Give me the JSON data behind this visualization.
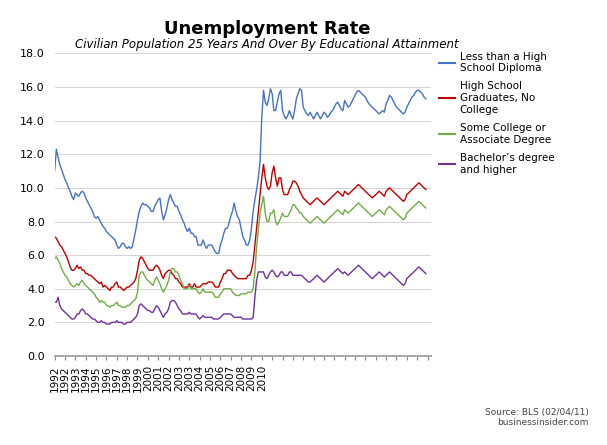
{
  "title": "Unemployment Rate",
  "subtitle": "Civilian Population 25 Years And Over By Educational Attainment",
  "source": "Source: BLS (02/04/11)\nbusinessinsider.com",
  "ylim": [
    0.0,
    18.0
  ],
  "yticks": [
    0.0,
    2.0,
    4.0,
    6.0,
    8.0,
    10.0,
    12.0,
    14.0,
    16.0,
    18.0
  ],
  "colors": {
    "less_hs": "#4472C4",
    "hs_grad": "#C00000",
    "some_college": "#70AD47",
    "bachelors": "#7030A0"
  },
  "legend": [
    "Less than a High\nSchool Diploma",
    "High School\nGraduates, No\nCollege",
    "Some College or\nAssociate Degree",
    "Bachelor’s degree\nand higher"
  ],
  "less_hs": [
    11.0,
    12.3,
    11.8,
    11.4,
    11.1,
    10.8,
    10.5,
    10.3,
    10.0,
    9.8,
    9.5,
    9.3,
    9.7,
    9.6,
    9.5,
    9.7,
    9.8,
    9.7,
    9.4,
    9.2,
    9.0,
    8.8,
    8.6,
    8.3,
    8.2,
    8.3,
    8.1,
    7.9,
    7.7,
    7.6,
    7.4,
    7.3,
    7.2,
    7.1,
    7.0,
    6.9,
    6.6,
    6.4,
    6.5,
    6.7,
    6.7,
    6.5,
    6.4,
    6.5,
    6.4,
    6.5,
    7.0,
    7.5,
    8.1,
    8.6,
    8.9,
    9.1,
    9.0,
    9.0,
    8.9,
    8.8,
    8.6,
    8.6,
    8.9,
    9.1,
    9.3,
    9.4,
    8.6,
    8.1,
    8.4,
    8.8,
    9.3,
    9.6,
    9.3,
    9.1,
    8.9,
    8.9,
    8.6,
    8.4,
    8.1,
    7.9,
    7.6,
    7.4,
    7.6,
    7.3,
    7.3,
    7.1,
    7.1,
    6.6,
    6.6,
    6.6,
    6.9,
    6.6,
    6.4,
    6.6,
    6.6,
    6.6,
    6.4,
    6.2,
    6.1,
    6.1,
    6.6,
    6.9,
    7.3,
    7.6,
    7.6,
    7.9,
    8.3,
    8.6,
    9.1,
    8.6,
    8.3,
    8.1,
    7.6,
    7.1,
    6.9,
    6.6,
    6.6,
    6.9,
    7.6,
    8.6,
    9.3,
    9.9,
    10.6,
    11.6,
    14.2,
    15.8,
    15.1,
    14.9,
    15.3,
    15.9,
    15.6,
    14.6,
    14.6,
    15.1,
    15.6,
    15.8,
    14.6,
    14.3,
    14.1,
    14.3,
    14.6,
    14.3,
    14.1,
    14.6,
    15.3,
    15.6,
    15.9,
    15.8,
    14.8,
    14.6,
    14.4,
    14.3,
    14.5,
    14.3,
    14.1,
    14.3,
    14.5,
    14.3,
    14.1,
    14.3,
    14.5,
    14.4,
    14.2,
    14.3,
    14.5,
    14.6,
    14.8,
    15.0,
    15.1,
    14.9,
    14.7,
    14.6,
    15.2,
    15.0,
    14.8,
    14.9,
    15.1,
    15.3,
    15.5,
    15.7,
    15.8,
    15.7,
    15.6,
    15.5,
    15.4,
    15.2,
    15.0,
    14.9,
    14.8,
    14.7,
    14.6,
    14.5,
    14.4,
    14.5,
    14.6,
    14.5,
    15.0,
    15.2,
    15.5,
    15.4,
    15.2,
    15.0,
    14.8,
    14.7,
    14.6,
    14.5,
    14.4,
    14.5,
    14.8,
    15.0,
    15.2,
    15.4,
    15.5,
    15.7,
    15.8,
    15.8,
    15.7,
    15.6,
    15.4,
    15.3
  ],
  "hs_grad": [
    7.1,
    7.0,
    6.8,
    6.6,
    6.5,
    6.3,
    6.1,
    5.9,
    5.6,
    5.3,
    5.1,
    5.1,
    5.2,
    5.4,
    5.2,
    5.3,
    5.1,
    5.1,
    4.9,
    4.9,
    4.8,
    4.8,
    4.7,
    4.6,
    4.5,
    4.4,
    4.3,
    4.4,
    4.1,
    4.2,
    4.1,
    4.0,
    3.9,
    4.1,
    4.1,
    4.3,
    4.4,
    4.1,
    4.1,
    4.0,
    3.9,
    4.0,
    4.1,
    4.1,
    4.2,
    4.3,
    4.4,
    4.6,
    5.1,
    5.7,
    5.9,
    5.8,
    5.6,
    5.4,
    5.2,
    5.1,
    5.1,
    5.1,
    5.3,
    5.4,
    5.3,
    5.1,
    4.8,
    4.6,
    4.9,
    5.0,
    5.1,
    5.1,
    4.9,
    4.8,
    4.6,
    4.6,
    4.4,
    4.3,
    4.1,
    4.1,
    4.1,
    4.1,
    4.3,
    4.1,
    4.1,
    4.3,
    4.1,
    4.1,
    4.1,
    4.2,
    4.3,
    4.3,
    4.3,
    4.4,
    4.4,
    4.4,
    4.3,
    4.1,
    4.1,
    4.1,
    4.4,
    4.6,
    4.9,
    4.9,
    5.1,
    5.1,
    5.1,
    4.9,
    4.8,
    4.7,
    4.6,
    4.6,
    4.6,
    4.6,
    4.6,
    4.6,
    4.8,
    4.8,
    5.1,
    5.6,
    6.6,
    7.6,
    8.6,
    9.6,
    10.6,
    11.4,
    10.6,
    10.1,
    9.9,
    10.1,
    10.9,
    11.3,
    10.6,
    10.1,
    10.6,
    10.6,
    9.9,
    9.6,
    9.6,
    9.6,
    9.9,
    10.1,
    10.4,
    10.4,
    10.3,
    10.1,
    9.8,
    9.6,
    9.4,
    9.3,
    9.2,
    9.1,
    9.0,
    9.1,
    9.2,
    9.3,
    9.4,
    9.3,
    9.2,
    9.1,
    9.0,
    9.1,
    9.2,
    9.3,
    9.4,
    9.5,
    9.6,
    9.7,
    9.8,
    9.7,
    9.6,
    9.5,
    9.8,
    9.7,
    9.6,
    9.7,
    9.8,
    9.9,
    10.0,
    10.1,
    10.2,
    10.1,
    10.0,
    9.9,
    9.8,
    9.7,
    9.6,
    9.5,
    9.4,
    9.5,
    9.6,
    9.7,
    9.8,
    9.7,
    9.6,
    9.5,
    9.8,
    9.9,
    10.0,
    9.9,
    9.8,
    9.7,
    9.6,
    9.5,
    9.4,
    9.3,
    9.2,
    9.3,
    9.6,
    9.7,
    9.8,
    9.9,
    10.0,
    10.1,
    10.2,
    10.3,
    10.2,
    10.1,
    10.0,
    9.9
  ],
  "some_college": [
    5.8,
    5.9,
    5.7,
    5.5,
    5.2,
    5.0,
    4.8,
    4.7,
    4.5,
    4.3,
    4.2,
    4.1,
    4.2,
    4.3,
    4.2,
    4.4,
    4.5,
    4.3,
    4.2,
    4.1,
    4.0,
    3.9,
    3.8,
    3.7,
    3.5,
    3.4,
    3.2,
    3.3,
    3.2,
    3.2,
    3.0,
    3.0,
    2.9,
    3.0,
    3.0,
    3.1,
    3.2,
    3.0,
    3.0,
    2.9,
    2.9,
    2.9,
    3.0,
    3.0,
    3.1,
    3.2,
    3.3,
    3.4,
    3.8,
    4.8,
    5.0,
    5.0,
    4.8,
    4.6,
    4.5,
    4.4,
    4.3,
    4.2,
    4.5,
    4.7,
    4.5,
    4.3,
    4.0,
    3.8,
    4.0,
    4.2,
    4.5,
    5.0,
    5.2,
    5.2,
    5.0,
    5.0,
    4.8,
    4.5,
    4.3,
    4.0,
    4.0,
    4.0,
    4.2,
    4.0,
    4.0,
    4.0,
    4.0,
    3.8,
    3.7,
    3.8,
    4.0,
    3.8,
    3.8,
    3.8,
    3.8,
    3.8,
    3.7,
    3.5,
    3.5,
    3.5,
    3.7,
    3.8,
    4.0,
    4.0,
    4.0,
    4.0,
    4.0,
    3.8,
    3.7,
    3.6,
    3.6,
    3.6,
    3.7,
    3.7,
    3.7,
    3.7,
    3.8,
    3.8,
    3.8,
    4.0,
    5.0,
    6.5,
    7.5,
    8.5,
    9.0,
    9.5,
    8.5,
    8.0,
    8.0,
    8.5,
    8.5,
    8.7,
    8.0,
    7.8,
    8.0,
    8.2,
    8.5,
    8.3,
    8.3,
    8.3,
    8.5,
    8.7,
    9.0,
    9.0,
    8.8,
    8.7,
    8.5,
    8.5,
    8.3,
    8.2,
    8.1,
    8.0,
    7.9,
    8.0,
    8.1,
    8.2,
    8.3,
    8.2,
    8.1,
    8.0,
    7.9,
    8.0,
    8.1,
    8.2,
    8.3,
    8.4,
    8.5,
    8.6,
    8.7,
    8.6,
    8.5,
    8.4,
    8.7,
    8.6,
    8.5,
    8.6,
    8.7,
    8.8,
    8.9,
    9.0,
    9.1,
    9.0,
    8.9,
    8.8,
    8.7,
    8.6,
    8.5,
    8.4,
    8.3,
    8.4,
    8.5,
    8.6,
    8.7,
    8.6,
    8.5,
    8.4,
    8.7,
    8.8,
    8.9,
    8.8,
    8.7,
    8.6,
    8.5,
    8.4,
    8.3,
    8.2,
    8.1,
    8.2,
    8.5,
    8.6,
    8.7,
    8.8,
    8.9,
    9.0,
    9.1,
    9.2,
    9.1,
    9.0,
    8.9,
    8.8
  ],
  "bachelors": [
    3.2,
    3.2,
    3.5,
    3.0,
    2.8,
    2.7,
    2.6,
    2.5,
    2.4,
    2.3,
    2.2,
    2.2,
    2.3,
    2.5,
    2.5,
    2.7,
    2.8,
    2.7,
    2.5,
    2.5,
    2.4,
    2.3,
    2.2,
    2.2,
    2.1,
    2.0,
    2.0,
    2.1,
    2.0,
    2.0,
    1.9,
    1.9,
    1.9,
    2.0,
    2.0,
    2.0,
    2.1,
    2.0,
    2.0,
    2.0,
    1.9,
    1.9,
    2.0,
    2.0,
    2.0,
    2.1,
    2.2,
    2.3,
    2.5,
    3.0,
    3.1,
    3.0,
    2.9,
    2.8,
    2.7,
    2.7,
    2.6,
    2.6,
    2.8,
    3.0,
    2.9,
    2.7,
    2.5,
    2.3,
    2.5,
    2.6,
    2.8,
    3.2,
    3.3,
    3.3,
    3.2,
    3.0,
    2.8,
    2.7,
    2.5,
    2.5,
    2.5,
    2.5,
    2.6,
    2.5,
    2.5,
    2.5,
    2.5,
    2.3,
    2.2,
    2.3,
    2.4,
    2.3,
    2.3,
    2.3,
    2.3,
    2.3,
    2.2,
    2.2,
    2.2,
    2.2,
    2.3,
    2.4,
    2.5,
    2.5,
    2.5,
    2.5,
    2.5,
    2.4,
    2.3,
    2.3,
    2.3,
    2.3,
    2.3,
    2.2,
    2.2,
    2.2,
    2.2,
    2.2,
    2.2,
    2.3,
    3.5,
    4.5,
    5.0,
    5.0,
    5.0,
    5.0,
    4.7,
    4.6,
    4.8,
    5.0,
    5.1,
    5.0,
    4.8,
    4.7,
    4.8,
    5.0,
    5.0,
    4.8,
    4.8,
    4.8,
    5.0,
    5.0,
    4.8,
    4.8,
    4.8,
    4.8,
    4.8,
    4.8,
    4.7,
    4.6,
    4.5,
    4.4,
    4.4,
    4.5,
    4.6,
    4.7,
    4.8,
    4.7,
    4.6,
    4.5,
    4.4,
    4.5,
    4.6,
    4.7,
    4.8,
    4.9,
    5.0,
    5.1,
    5.2,
    5.1,
    5.0,
    4.9,
    5.0,
    4.9,
    4.8,
    4.9,
    5.0,
    5.1,
    5.2,
    5.3,
    5.4,
    5.3,
    5.2,
    5.1,
    5.0,
    4.9,
    4.8,
    4.7,
    4.6,
    4.7,
    4.8,
    4.9,
    5.0,
    4.9,
    4.8,
    4.7,
    4.8,
    4.9,
    5.0,
    4.9,
    4.8,
    4.7,
    4.6,
    4.5,
    4.4,
    4.3,
    4.2,
    4.3,
    4.6,
    4.7,
    4.8,
    4.9,
    5.0,
    5.1,
    5.2,
    5.3,
    5.2,
    5.1,
    5.0,
    4.9
  ],
  "n_points": 216,
  "x_start_year": 1992,
  "x_start_month": 1,
  "xlim_start": 1992.0,
  "xlim_end": 2010.167,
  "xtick_offsets": [
    0,
    6,
    12,
    18,
    24,
    30,
    36,
    42,
    48,
    54,
    60,
    66,
    72,
    78,
    84,
    90,
    96,
    102,
    108,
    114,
    120,
    126,
    132,
    138,
    144,
    150,
    156,
    162,
    168,
    174,
    180,
    186,
    192,
    198,
    204,
    210,
    216
  ],
  "xtick_labels": [
    "1992",
    "1992",
    "1993",
    "1994",
    "1995",
    "1996",
    "1997",
    "1998",
    "1999",
    "2000",
    "2001",
    "2002",
    "2003",
    "2003",
    "2004",
    "2005",
    "2006",
    "2007",
    "2008",
    "2009",
    "2010",
    "",
    "",
    "",
    "",
    "",
    "",
    "",
    "",
    "",
    "",
    "",
    "",
    "",
    "",
    "",
    ""
  ]
}
